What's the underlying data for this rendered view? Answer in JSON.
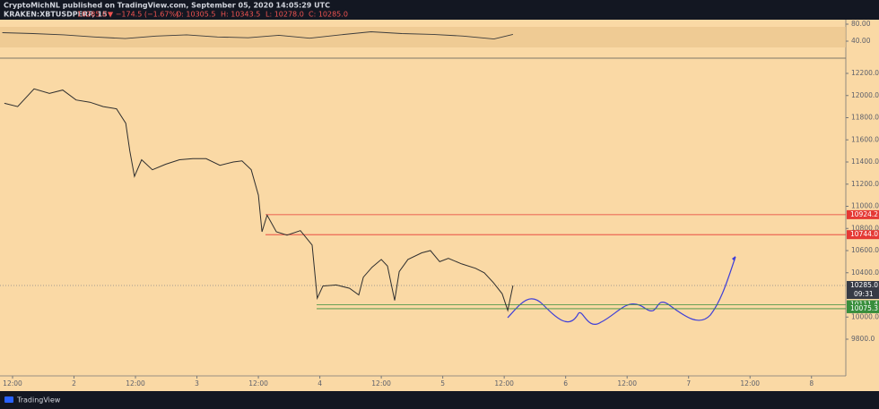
{
  "header": {
    "publisher": "CryptoMichNL published on TradingView.com, September 05, 2020 14:05:29 UTC",
    "symbol": "KRAKEN:XBTUSDPERP, 15",
    "last": "10285.0",
    "change": "▼ −174.5 (−1.67%)",
    "open": "O: 10305.5",
    "high": "H: 10343.5",
    "low": "L: 10278.0",
    "close": "C: 10285.0"
  },
  "footer": {
    "brand": "TradingView"
  },
  "rsi": {
    "ylim": [
      0,
      100
    ],
    "yticks": [
      {
        "value": 80,
        "label": "80.00"
      },
      {
        "value": 40,
        "label": "40.00"
      }
    ],
    "x": [
      -2,
      4,
      10,
      16,
      22,
      28,
      34,
      40,
      46,
      52,
      58,
      64,
      70,
      76,
      82,
      88,
      94,
      97.7
    ],
    "values": [
      60,
      58,
      55,
      50,
      46,
      52,
      55,
      50,
      48,
      54,
      47,
      55,
      62,
      58,
      56,
      52,
      45,
      56
    ],
    "color": "#3c3c3c"
  },
  "chart_data": {
    "type": "line",
    "color": "#2f2f2f",
    "xlim": [
      -2.45,
      162.7
    ],
    "ylim": [
      9720,
      12330
    ],
    "yticks": [
      {
        "value": 12200,
        "label": "12200.0"
      },
      {
        "value": 12000,
        "label": "12000.0"
      },
      {
        "value": 11800,
        "label": "11800.0"
      },
      {
        "value": 11600,
        "label": "11600.0"
      },
      {
        "value": 11400,
        "label": "11400.0"
      },
      {
        "value": 11200,
        "label": "11200.0"
      },
      {
        "value": 11000,
        "label": "11000.0"
      },
      {
        "value": 10800,
        "label": "10800.0"
      },
      {
        "value": 10600,
        "label": "10600.0"
      },
      {
        "value": 10400,
        "label": "10400.0"
      },
      {
        "value": 10000,
        "label": "10000.0"
      },
      {
        "value": 9800,
        "label": "9800.0"
      }
    ],
    "xticks": [
      {
        "value": 0,
        "label": "12:00"
      },
      {
        "value": 12,
        "label": "2"
      },
      {
        "value": 24,
        "label": "12:00"
      },
      {
        "value": 36,
        "label": "3"
      },
      {
        "value": 48,
        "label": "12:00"
      },
      {
        "value": 60,
        "label": "4"
      },
      {
        "value": 72,
        "label": "12:00"
      },
      {
        "value": 84,
        "label": "5"
      },
      {
        "value": 96,
        "label": "12:00"
      },
      {
        "value": 108,
        "label": "6"
      },
      {
        "value": 120,
        "label": "12:00"
      },
      {
        "value": 132,
        "label": "7"
      },
      {
        "value": 144,
        "label": "12:00"
      },
      {
        "value": 156,
        "label": "8"
      }
    ],
    "x": [
      -1.6,
      1,
      4.2,
      7.2,
      9.8,
      12.4,
      15.1,
      17.7,
      20.3,
      22.1,
      22.9,
      23.8,
      25.2,
      27.3,
      29.9,
      32.6,
      35.2,
      37.8,
      40.5,
      43.1,
      44.8,
      46.6,
      48,
      48.7,
      49.7,
      51.5,
      53.6,
      56.2,
      58.5,
      59.5,
      60.6,
      63.2,
      65.8,
      67.6,
      68.5,
      70.2,
      72,
      73.2,
      74.6,
      75.5,
      77.2,
      79.9,
      81.6,
      83.4,
      85.1,
      87.7,
      90.4,
      92.1,
      93.9,
      95.6,
      96.7,
      97.7
    ],
    "values": [
      11930,
      11900,
      12060,
      12020,
      12050,
      11960,
      11940,
      11900,
      11880,
      11750,
      11500,
      11270,
      11420,
      11330,
      11380,
      11420,
      11430,
      11430,
      11370,
      11400,
      11410,
      11330,
      11100,
      10770,
      10920,
      10770,
      10740,
      10780,
      10650,
      10170,
      10280,
      10290,
      10260,
      10200,
      10360,
      10450,
      10520,
      10460,
      10150,
      10410,
      10520,
      10580,
      10600,
      10500,
      10530,
      10480,
      10440,
      10400,
      10310,
      10210,
      10060,
      10285
    ],
    "levels": [
      {
        "value": 10924.2,
        "label": "10924.2",
        "color": "#e53935"
      },
      {
        "value": 10744.0,
        "label": "10744.0",
        "color": "#e53935"
      },
      {
        "value": 10111.4,
        "label": "10111.4",
        "color": "#388e3c"
      },
      {
        "value": 10075.3,
        "label": "10075.3",
        "color": "#388e3c"
      }
    ],
    "current": {
      "value": 10285.0,
      "label": "10285.0",
      "countdown": "09:31",
      "color": "#363a45"
    }
  }
}
